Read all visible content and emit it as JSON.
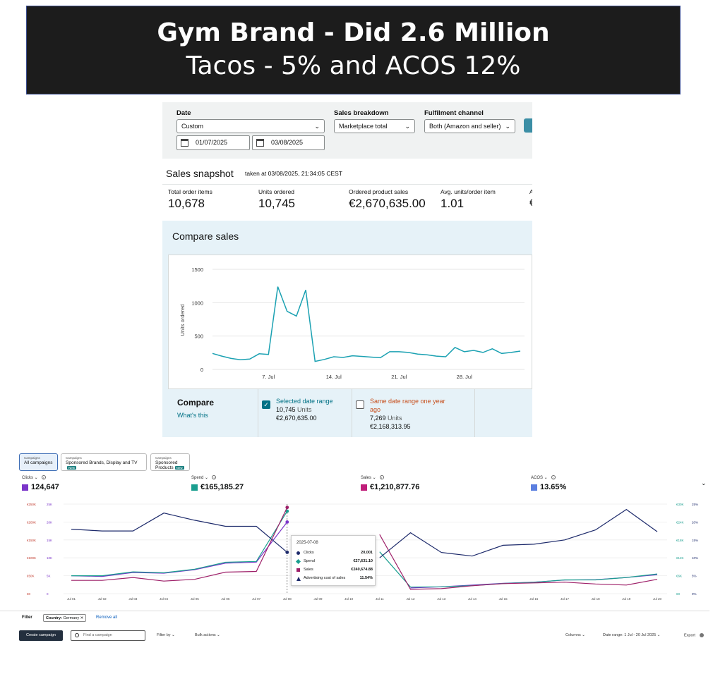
{
  "banner": {
    "title": "Gym Brand - Did 2.6 Million",
    "subtitle": "Tacos - 5% and ACOS 12%"
  },
  "sales_panel": {
    "filters": {
      "date_label": "Date",
      "date_value": "Custom",
      "start_date": "01/07/2025",
      "end_date": "03/08/2025",
      "breakdown_label": "Sales breakdown",
      "breakdown_value": "Marketplace total",
      "channel_label": "Fulfilment channel",
      "channel_value": "Both (Amazon and seller)"
    },
    "snapshot": {
      "title": "Sales snapshot",
      "taken": "taken at 03/08/2025, 21:34:05 CEST",
      "metrics": [
        {
          "label": "Total order items",
          "value": "10,678"
        },
        {
          "label": "Units ordered",
          "value": "10,745"
        },
        {
          "label": "Ordered product sales",
          "value": "€2,670,635.00"
        },
        {
          "label": "Avg. units/order item",
          "value": "1.01"
        }
      ],
      "trunc_label": "A",
      "trunc_value": "€"
    },
    "compare": {
      "title": "Compare sales",
      "section_label": "Compare",
      "link": "What's this",
      "selected": {
        "label": "Selected date range",
        "units": "10,745",
        "units_word": "Units",
        "sales": "€2,670,635.00"
      },
      "last_year": {
        "label": "Same date range one year ago",
        "units": "7,269",
        "units_word": "Units",
        "sales": "€2,168,313.95"
      }
    }
  },
  "chart_data": [
    {
      "type": "line",
      "ylabel": "Units ordered",
      "ylim": [
        0,
        1500
      ],
      "yticks": [
        "0",
        "500",
        "1000",
        "1500"
      ],
      "xticks": [
        "7. Jul",
        "14. Jul",
        "21. Jul",
        "28. Jul"
      ],
      "xtick_index": [
        6,
        13,
        20,
        27
      ],
      "color": "#1ba1b2",
      "values": [
        240,
        200,
        165,
        145,
        155,
        235,
        225,
        1240,
        870,
        800,
        1190,
        120,
        150,
        190,
        180,
        205,
        195,
        185,
        175,
        265,
        265,
        255,
        230,
        220,
        200,
        190,
        330,
        265,
        285,
        255,
        310,
        240,
        255,
        275
      ]
    },
    {
      "type": "line",
      "x": [
        "Jul 01",
        "Jul 02",
        "Jul 03",
        "Jul 04",
        "Jul 05",
        "Jul 06",
        "Jul 07",
        "Jul 08",
        "Jul 09",
        "Jul 10",
        "Jul 11",
        "Jul 12",
        "Jul 13",
        "Jul 14",
        "Jul 15",
        "Jul 16",
        "Jul 17",
        "Jul 18",
        "Jul 19",
        "Jul 20"
      ],
      "left_axis_sales": [
        "€0",
        "€50K",
        "€100K",
        "€150K",
        "€200K",
        "€250K"
      ],
      "left_axis_clicks": [
        "0",
        "5K",
        "10K",
        "15K",
        "20K",
        "25K"
      ],
      "right_axis_spend": [
        "€0",
        "€6K",
        "€12K",
        "€18K",
        "€24K",
        "€30K"
      ],
      "right_axis_acos": [
        "0%",
        "5%",
        "10%",
        "15%",
        "20%",
        "25%"
      ],
      "series": [
        {
          "name": "Clicks",
          "color": "#7b35c9",
          "max": 25000,
          "values": [
            5000,
            4800,
            5900,
            5700,
            6700,
            8500,
            8800,
            20001,
            null,
            null,
            null,
            1600,
            1900,
            2400,
            2900,
            3200,
            3800,
            3900,
            4500,
            5300
          ]
        },
        {
          "name": "Spend",
          "color": "#1a9e8f",
          "max": 30000,
          "values": [
            6000,
            6000,
            7300,
            7000,
            8200,
            10500,
            10800,
            27631.1,
            null,
            null,
            14000,
            2200,
            2300,
            2700,
            3400,
            3800,
            4600,
            4600,
            5400,
            6600
          ]
        },
        {
          "name": "Sales",
          "color": "#9e2069",
          "max": 250000,
          "values": [
            37000,
            37000,
            45000,
            35000,
            40000,
            60000,
            62000,
            240674.88,
            null,
            null,
            165000,
            12000,
            14000,
            22000,
            28000,
            30000,
            32000,
            27000,
            24000,
            40000
          ]
        },
        {
          "name": "Advertising cost of sales",
          "color": "#1d2a6b",
          "max": 25,
          "values": [
            18,
            17.5,
            17.5,
            22.5,
            20.5,
            18.8,
            18.8,
            11.54,
            null,
            null,
            10,
            17,
            11.5,
            10.5,
            13.5,
            13.8,
            15,
            17.8,
            23.5,
            17.3
          ]
        }
      ],
      "hover_index": 7
    }
  ],
  "ads": {
    "tabs": [
      {
        "small": "Campaigns",
        "label": "All campaigns",
        "new": ""
      },
      {
        "small": "Campaigns",
        "label": "Sponsored Brands, Display and TV",
        "new": "New"
      },
      {
        "small": "Campaigns",
        "label": "Sponsored Products",
        "new": "New"
      }
    ],
    "kpis": [
      {
        "label": "Clicks",
        "value": "124,647",
        "color": "#7b35c9"
      },
      {
        "label": "Spend",
        "value": "€165,185.27",
        "color": "#1a9e8f"
      },
      {
        "label": "Sales",
        "value": "€1,210,877.76",
        "color": "#c01e7a"
      },
      {
        "label": "ACOS",
        "value": "13.65%",
        "color": "#5b7fe0"
      }
    ],
    "tooltip": {
      "date": "2025-07-08",
      "rows": [
        {
          "name": "Clicks",
          "value": "20,001",
          "color": "#1d2a6b"
        },
        {
          "name": "Spend",
          "value": "€27,631.10",
          "color": "#1a9e8f"
        },
        {
          "name": "Sales",
          "value": "€240,674.88",
          "color": "#9e2069"
        },
        {
          "name": "Advertising cost of sales",
          "value": "11.54%",
          "color": "#1d2a6b"
        }
      ]
    },
    "filter": {
      "label": "Filter",
      "chip_key": "Country:",
      "chip_value": "Germany",
      "remove_all": "Remove all"
    },
    "toolbar": {
      "create": "Create campaign",
      "search_placeholder": "Find a campaign",
      "filter_by": "Filter by",
      "bulk": "Bulk actions",
      "columns": "Columns",
      "date_range": "Date range: 1 Jul - 20 Jul 2025",
      "export": "Export"
    }
  }
}
